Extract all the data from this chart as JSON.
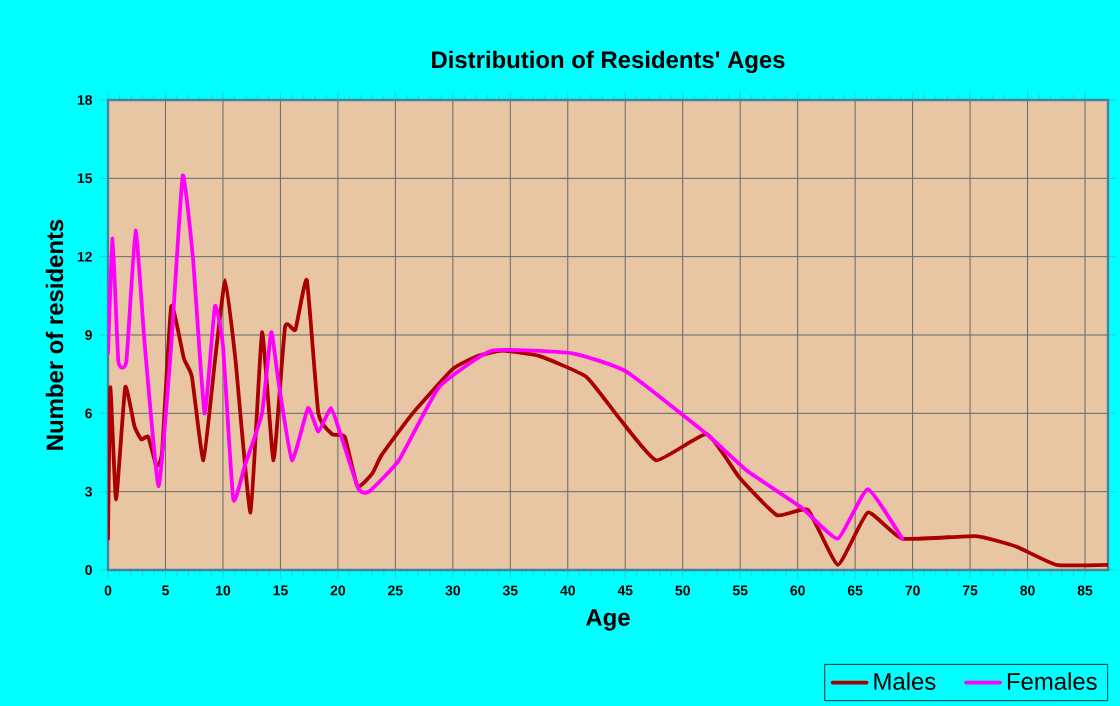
{
  "chart_data": {
    "type": "line",
    "title": "Distribution of Residents' Ages",
    "xlabel": "Age",
    "ylabel": "Number of residents",
    "xlim": [
      0,
      87
    ],
    "ylim": [
      0,
      18
    ],
    "xticks": [
      0,
      5,
      10,
      15,
      20,
      25,
      30,
      35,
      40,
      45,
      50,
      55,
      60,
      65,
      70,
      75,
      80,
      85
    ],
    "yticks": [
      0,
      3,
      6,
      9,
      12,
      15,
      18
    ],
    "grid": true,
    "legend": "bottom right",
    "line_style": "solid",
    "marker": "none",
    "series": [
      {
        "name": "Males",
        "color": "#aa0000",
        "x": [
          0,
          0.2,
          0.7,
          1.5,
          2.3,
          2.9,
          3.5,
          4.2,
          4.7,
          5.5,
          6.6,
          7.3,
          8.3,
          9.3,
          10.2,
          11.1,
          12.4,
          13.4,
          14.4,
          15.4,
          16.3,
          17.3,
          18.3,
          19.5,
          20.6,
          21.7,
          23,
          23.8,
          26.5,
          30,
          32.2,
          34.3,
          37.5,
          41.6,
          44.5,
          47.7,
          52.1,
          55,
          58.2,
          60.9,
          63.5,
          66.1,
          69.1,
          75.5,
          79,
          82.5,
          87
        ],
        "values": [
          1.2,
          7,
          2.7,
          7,
          5.5,
          5,
          5.1,
          4,
          4.5,
          10.1,
          8.1,
          7.4,
          4.2,
          8,
          11.1,
          8,
          2.2,
          9.1,
          4.2,
          9.3,
          9.2,
          11.1,
          6,
          5.2,
          5.1,
          3.2,
          3.7,
          4.4,
          6,
          7.7,
          8.2,
          8.4,
          8.2,
          7.4,
          5.8,
          4.2,
          5.2,
          3.5,
          2.1,
          2.3,
          0.2,
          2.2,
          1.2,
          1.3,
          0.9,
          0.2,
          0.2
        ]
      },
      {
        "name": "Females",
        "color": "#ff00ff",
        "x": [
          0,
          0.4,
          0.9,
          1.6,
          2.4,
          3.2,
          4.4,
          5.5,
          6.5,
          7.4,
          8.4,
          9.3,
          10,
          10.9,
          11.9,
          13.4,
          14.2,
          14.8,
          16,
          17.4,
          18.3,
          19.4,
          20.3,
          21.8,
          22.7,
          25.3,
          28.8,
          33.4,
          40.4,
          45.1,
          52.1,
          55.6,
          60.3,
          63.5,
          66.1,
          69.1
        ],
        "values": [
          8.3,
          12.7,
          8,
          8,
          13,
          8.6,
          3.2,
          8.6,
          15.1,
          11.9,
          6,
          10.1,
          8.6,
          2.7,
          4,
          6,
          9.1,
          7.3,
          4.2,
          6.2,
          5.3,
          6.2,
          5.1,
          3.1,
          3,
          4.2,
          7,
          8.4,
          8.3,
          7.6,
          5.2,
          3.8,
          2.4,
          1.2,
          3.1,
          1.2
        ]
      }
    ]
  }
}
